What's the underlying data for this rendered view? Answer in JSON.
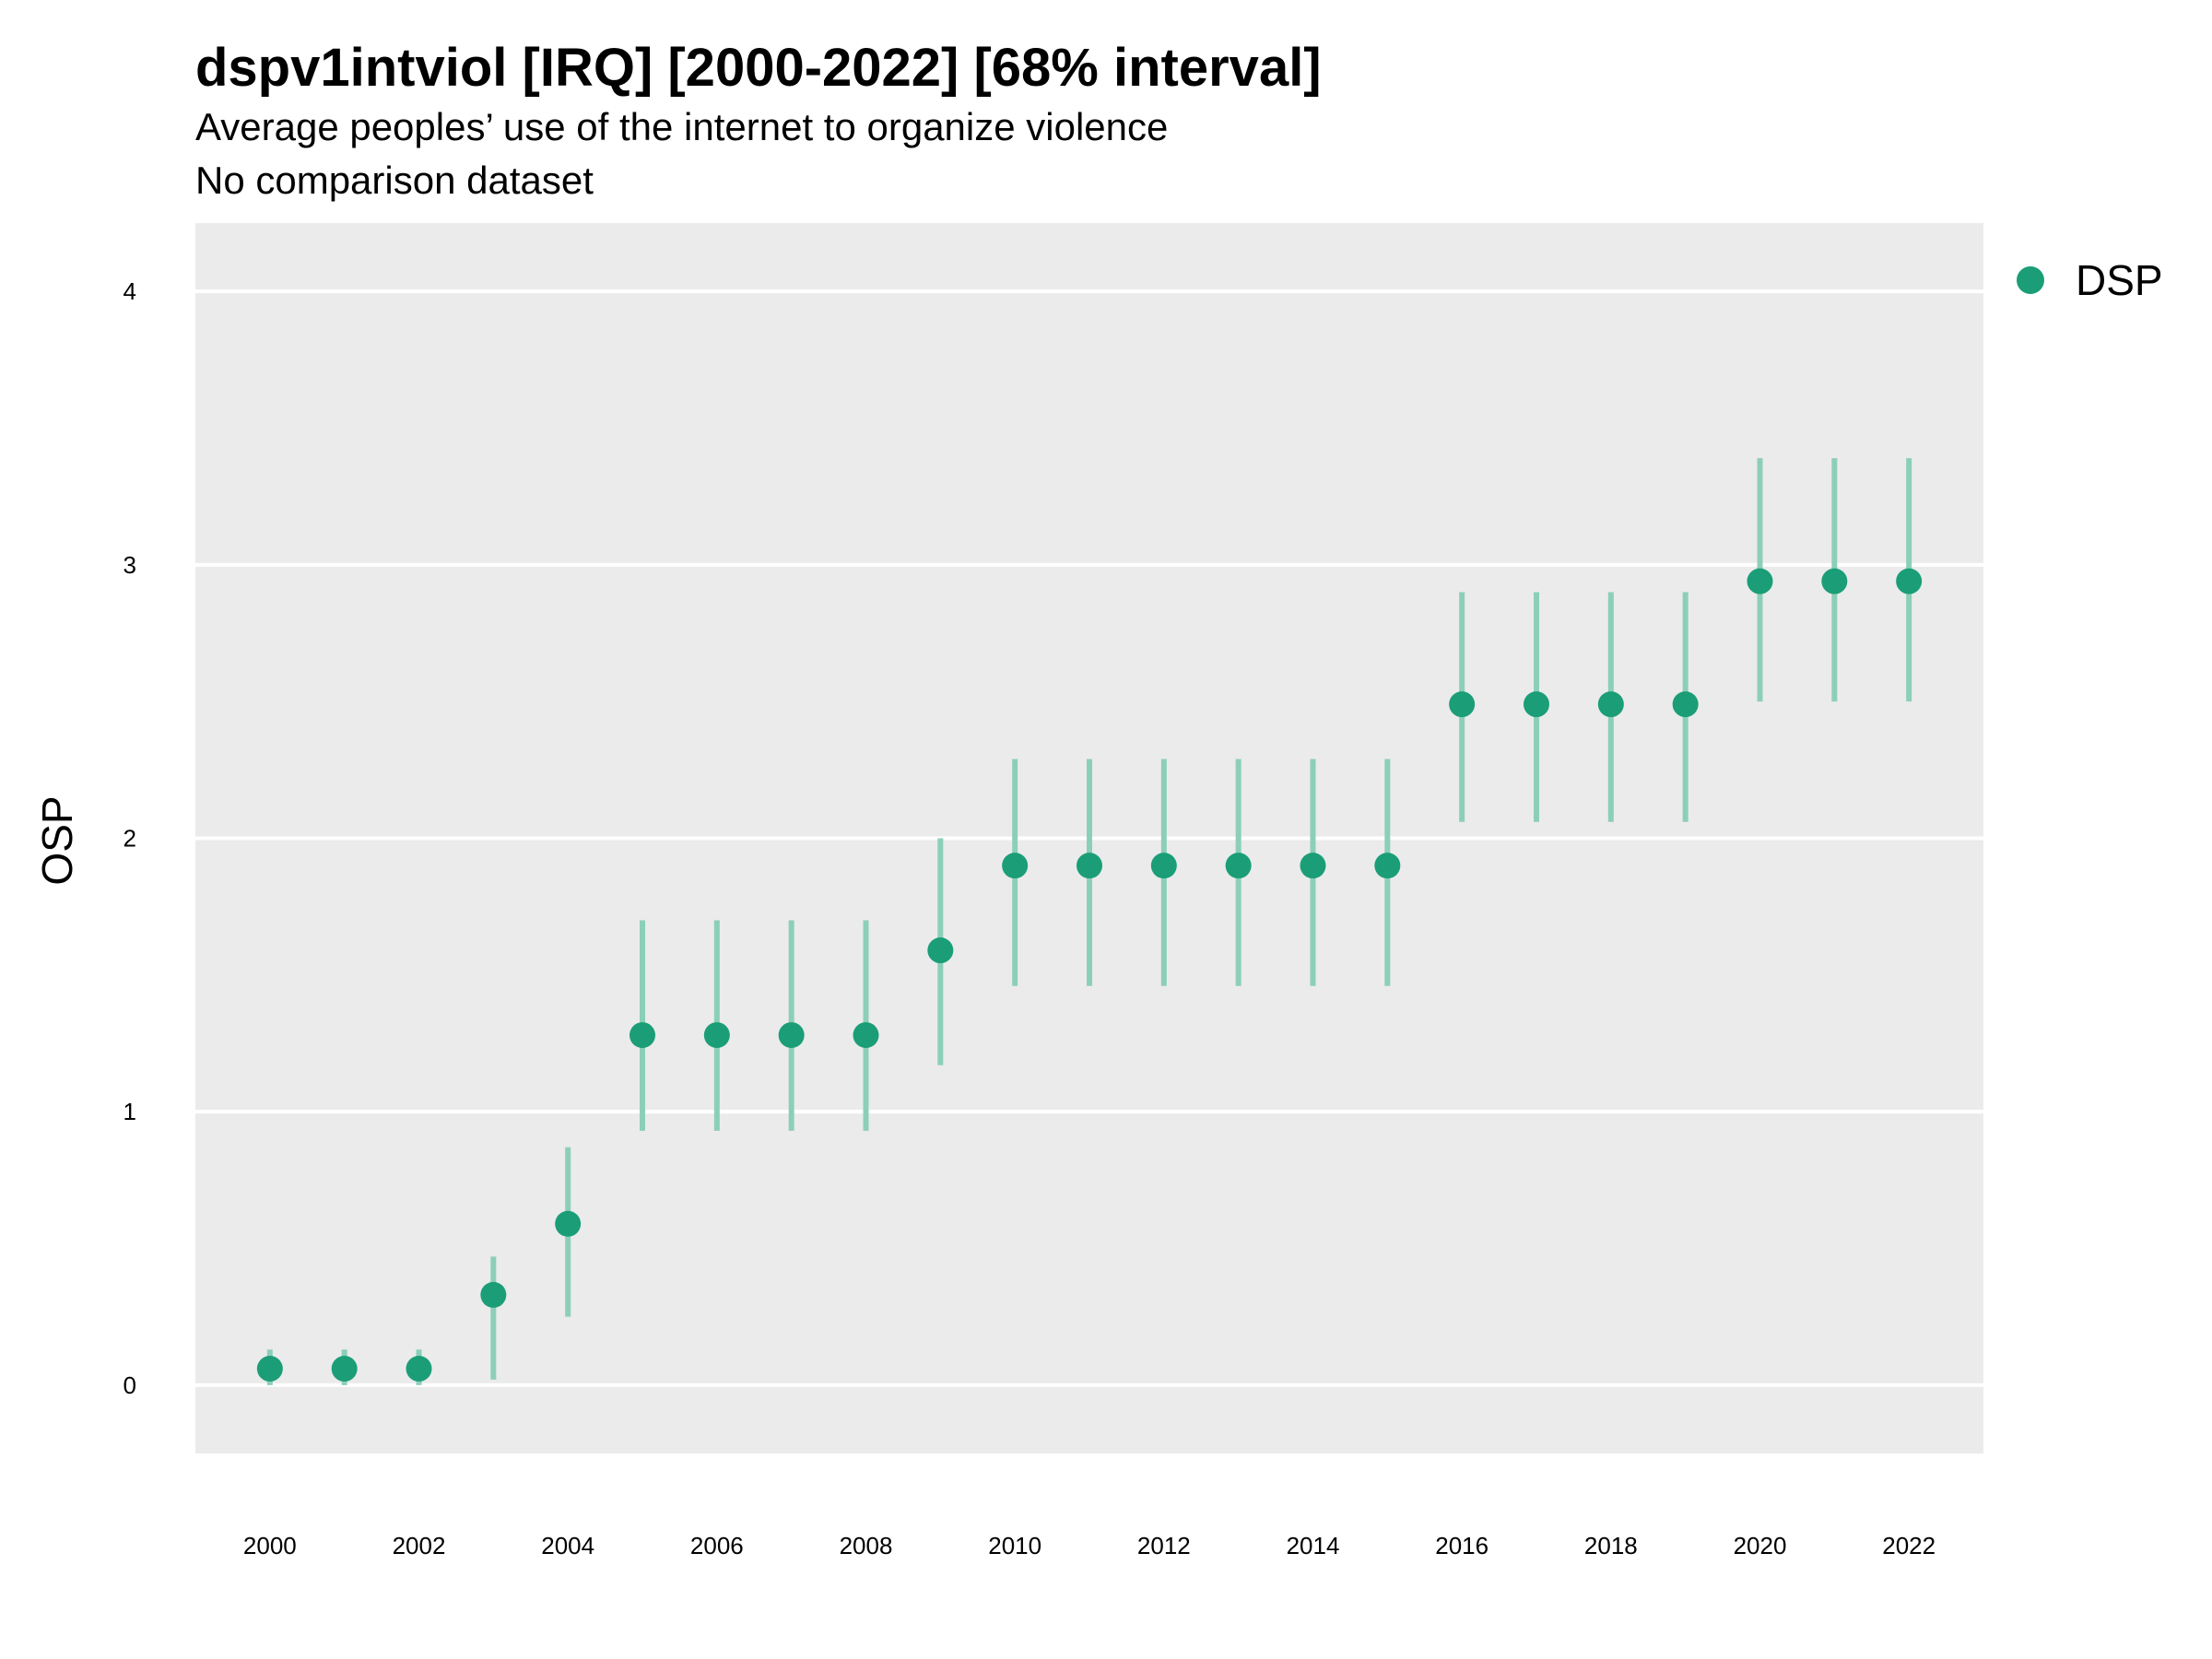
{
  "title": "dspv1intviol [IRQ] [2000-2022] [68% interval]",
  "subtitle": "Average peoples’ use of the internet to organize violence",
  "caption": "No comparison dataset",
  "colors": {
    "point": "#1b9e77",
    "interval": "#8ccfb8",
    "panel": "#ebebeb",
    "grid": "#ffffff"
  },
  "chart_data": {
    "type": "scatter",
    "ylabel": "OSP",
    "xlabel": "",
    "xlim": [
      1999,
      2023
    ],
    "ylim": [
      -0.25,
      4.25
    ],
    "x_ticks": [
      2000,
      2002,
      2004,
      2006,
      2008,
      2010,
      2012,
      2014,
      2016,
      2018,
      2020,
      2022
    ],
    "y_ticks": [
      0,
      1,
      2,
      3,
      4
    ],
    "grid": true,
    "legend_position": "top-right",
    "series": [
      {
        "name": "DSP",
        "x": [
          2000,
          2001,
          2002,
          2003,
          2004,
          2005,
          2006,
          2007,
          2008,
          2009,
          2010,
          2011,
          2012,
          2013,
          2014,
          2015,
          2016,
          2017,
          2018,
          2019,
          2020,
          2021,
          2022
        ],
        "y": [
          0.06,
          0.06,
          0.06,
          0.33,
          0.59,
          1.28,
          1.28,
          1.28,
          1.28,
          1.59,
          1.9,
          1.9,
          1.9,
          1.9,
          1.9,
          1.9,
          2.49,
          2.49,
          2.49,
          2.49,
          2.94,
          2.94,
          2.94
        ],
        "lower": [
          0.0,
          0.0,
          0.0,
          0.02,
          0.25,
          0.93,
          0.93,
          0.93,
          0.93,
          1.17,
          1.46,
          1.46,
          1.46,
          1.46,
          1.46,
          1.46,
          2.06,
          2.06,
          2.06,
          2.06,
          2.5,
          2.5,
          2.5
        ],
        "upper": [
          0.13,
          0.13,
          0.13,
          0.47,
          0.87,
          1.7,
          1.7,
          1.7,
          1.7,
          2.0,
          2.29,
          2.29,
          2.29,
          2.29,
          2.29,
          2.29,
          2.9,
          2.9,
          2.9,
          2.9,
          3.39,
          3.39,
          3.39
        ]
      }
    ]
  }
}
